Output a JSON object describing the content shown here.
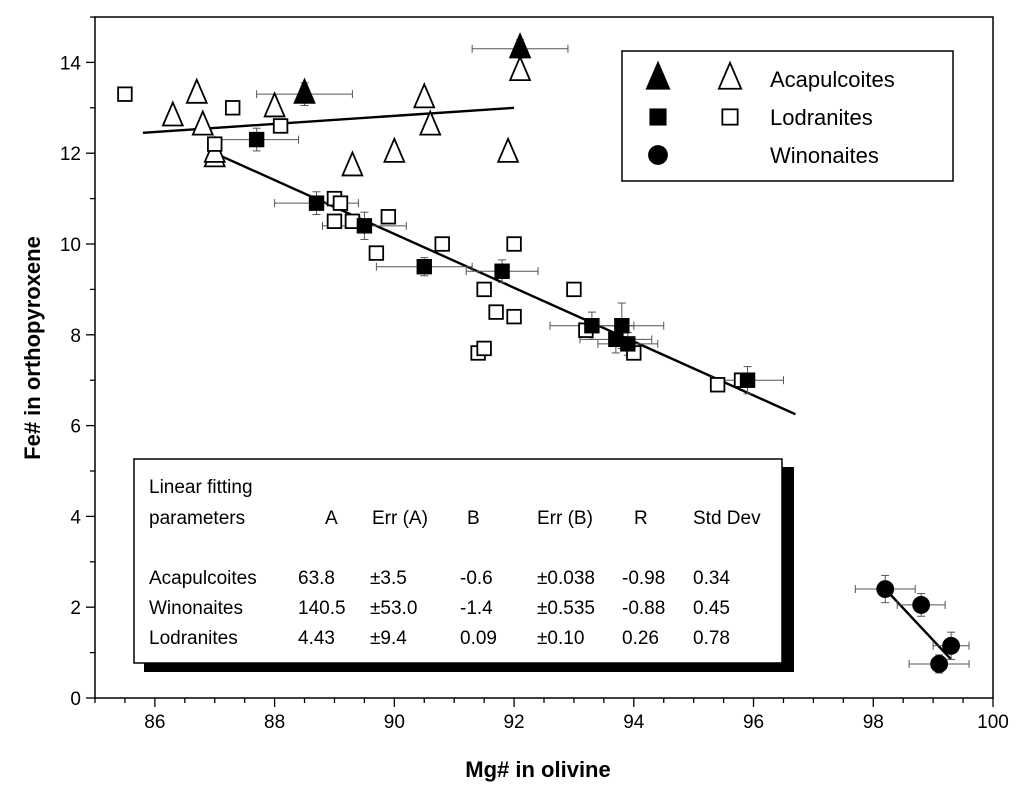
{
  "chart_data": {
    "type": "scatter",
    "xlabel": "Mg# in olivine",
    "ylabel": "Fe# in orthopyroxene",
    "xlim": [
      85,
      100
    ],
    "ylim": [
      0,
      15
    ],
    "xticks": [
      86,
      88,
      90,
      92,
      94,
      96,
      98,
      100
    ],
    "yticks": [
      0,
      2,
      4,
      6,
      8,
      10,
      12,
      14
    ],
    "legend_position": "top-right",
    "series": [
      {
        "name": "Acapulcoites",
        "marker": "triangle",
        "filled": [
          {
            "x": 88.5,
            "y": 13.3,
            "xerr": 0.8,
            "yerr": 0.25
          },
          {
            "x": 92.1,
            "y": 14.3,
            "xerr": 0.8,
            "yerr": 0.2
          }
        ],
        "open": [
          {
            "x": 86.3,
            "y": 12.8
          },
          {
            "x": 86.7,
            "y": 13.3
          },
          {
            "x": 86.8,
            "y": 12.6
          },
          {
            "x": 87.0,
            "y": 11.9
          },
          {
            "x": 87.0,
            "y": 12.0
          },
          {
            "x": 88.0,
            "y": 13.0
          },
          {
            "x": 89.3,
            "y": 11.7
          },
          {
            "x": 90.0,
            "y": 12.0
          },
          {
            "x": 90.5,
            "y": 13.2
          },
          {
            "x": 90.6,
            "y": 12.6
          },
          {
            "x": 91.9,
            "y": 12.0
          },
          {
            "x": 92.1,
            "y": 13.8
          }
        ]
      },
      {
        "name": "Lodranites",
        "marker": "square",
        "filled": [
          {
            "x": 87.7,
            "y": 12.3,
            "xerr": 0.7,
            "yerr": 0.25
          },
          {
            "x": 88.7,
            "y": 10.9,
            "xerr": 0.7,
            "yerr": 0.25
          },
          {
            "x": 89.5,
            "y": 10.4,
            "xerr": 0.7,
            "yerr": 0.3
          },
          {
            "x": 90.5,
            "y": 9.5,
            "xerr": 0.8,
            "yerr": 0.2
          },
          {
            "x": 91.8,
            "y": 9.4,
            "xerr": 0.6,
            "yerr": 0.25
          },
          {
            "x": 93.3,
            "y": 8.2,
            "xerr": 0.7,
            "yerr": 0.3
          },
          {
            "x": 93.7,
            "y": 7.9,
            "xerr": 0.6,
            "yerr": 0.3
          },
          {
            "x": 93.8,
            "y": 8.2,
            "xerr": 0.7,
            "yerr": 0.5
          },
          {
            "x": 93.9,
            "y": 7.8,
            "xerr": 0.5,
            "yerr": 0.25
          },
          {
            "x": 95.9,
            "y": 7.0,
            "xerr": 0.6,
            "yerr": 0.3
          }
        ],
        "open": [
          {
            "x": 85.5,
            "y": 13.3
          },
          {
            "x": 87.0,
            "y": 12.2
          },
          {
            "x": 87.3,
            "y": 13.0
          },
          {
            "x": 88.1,
            "y": 12.6
          },
          {
            "x": 89.0,
            "y": 11.0
          },
          {
            "x": 89.0,
            "y": 10.5
          },
          {
            "x": 89.1,
            "y": 10.9
          },
          {
            "x": 89.3,
            "y": 10.5
          },
          {
            "x": 89.7,
            "y": 9.8
          },
          {
            "x": 89.9,
            "y": 10.6
          },
          {
            "x": 90.8,
            "y": 10.0
          },
          {
            "x": 91.4,
            "y": 7.6
          },
          {
            "x": 91.5,
            "y": 7.7
          },
          {
            "x": 91.5,
            "y": 9.0
          },
          {
            "x": 91.7,
            "y": 8.5
          },
          {
            "x": 92.0,
            "y": 8.4
          },
          {
            "x": 92.0,
            "y": 10.0
          },
          {
            "x": 93.0,
            "y": 9.0
          },
          {
            "x": 93.2,
            "y": 8.1
          },
          {
            "x": 94.0,
            "y": 7.6
          },
          {
            "x": 95.4,
            "y": 6.9
          },
          {
            "x": 95.8,
            "y": 7.0
          }
        ]
      },
      {
        "name": "Winonaites",
        "marker": "circle",
        "filled": [
          {
            "x": 98.2,
            "y": 2.4,
            "xerr": 0.5,
            "yerr": 0.3
          },
          {
            "x": 98.8,
            "y": 2.05,
            "xerr": 0.4,
            "yerr": 0.25
          },
          {
            "x": 99.1,
            "y": 0.75,
            "xerr": 0.5,
            "yerr": 0.2
          },
          {
            "x": 99.3,
            "y": 1.15,
            "xerr": 0.3,
            "yerr": 0.3
          }
        ],
        "open": []
      }
    ],
    "fit_lines": [
      {
        "name": "Lodranites fit",
        "x": [
          85.8,
          92.0
        ],
        "y": [
          12.45,
          13.0
        ]
      },
      {
        "name": "Acapulcoites fit",
        "x": [
          87.0,
          96.7
        ],
        "y": [
          12.0,
          6.25
        ]
      },
      {
        "name": "Winonaites fit",
        "x": [
          98.2,
          99.3
        ],
        "y": [
          2.4,
          0.85
        ]
      }
    ],
    "table": {
      "header_line1": "Linear fitting",
      "header_line2": "parameters",
      "columns": [
        "A",
        "Err (A)",
        "B",
        "Err (B)",
        "R",
        "Std Dev"
      ],
      "rows": [
        {
          "name": "Acapulcoites",
          "values": [
            "63.8",
            "±3.5",
            "-0.6",
            "±0.038",
            "-0.98",
            "0.34"
          ]
        },
        {
          "name": "Winonaites",
          "values": [
            "140.5",
            "±53.0",
            "-1.4",
            "±0.535",
            "-0.88",
            "0.45"
          ]
        },
        {
          "name": "Lodranites",
          "values": [
            "4.43",
            "±9.4",
            "0.09",
            "±0.10",
            "0.26",
            "0.78"
          ]
        }
      ]
    }
  }
}
